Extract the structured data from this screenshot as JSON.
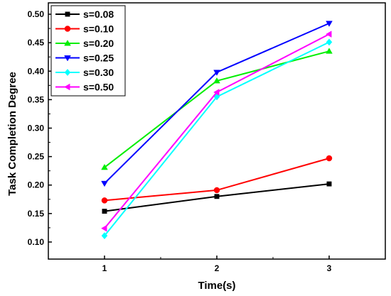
{
  "chart_data": {
    "type": "line",
    "x": [
      1,
      2,
      3
    ],
    "xlabel": "Time(s)",
    "ylabel": "Task Completion Degree",
    "xlim": [
      0.5,
      3.5
    ],
    "ylim": [
      0.07,
      0.52
    ],
    "xticks": [
      "1",
      "2",
      "3"
    ],
    "yticks": [
      "0.10",
      "0.15",
      "0.20",
      "0.25",
      "0.30",
      "0.35",
      "0.40",
      "0.45",
      "0.50"
    ],
    "legend_position": "top-left",
    "grid": false,
    "series": [
      {
        "name": "s=0.08",
        "values": [
          0.154,
          0.18,
          0.202
        ],
        "color": "#000000",
        "marker": "square"
      },
      {
        "name": "s=0.10",
        "values": [
          0.173,
          0.191,
          0.247
        ],
        "color": "#ff0000",
        "marker": "circle"
      },
      {
        "name": "s=0.20",
        "values": [
          0.231,
          0.383,
          0.435
        ],
        "color": "#00ee00",
        "marker": "triangle-up"
      },
      {
        "name": "s=0.25",
        "values": [
          0.203,
          0.398,
          0.484
        ],
        "color": "#0000ff",
        "marker": "triangle-down"
      },
      {
        "name": "s=0.30",
        "values": [
          0.111,
          0.355,
          0.451
        ],
        "color": "#00ffff",
        "marker": "diamond"
      },
      {
        "name": "s=0.50",
        "values": [
          0.124,
          0.363,
          0.465
        ],
        "color": "#ff00ff",
        "marker": "triangle-left"
      }
    ]
  }
}
